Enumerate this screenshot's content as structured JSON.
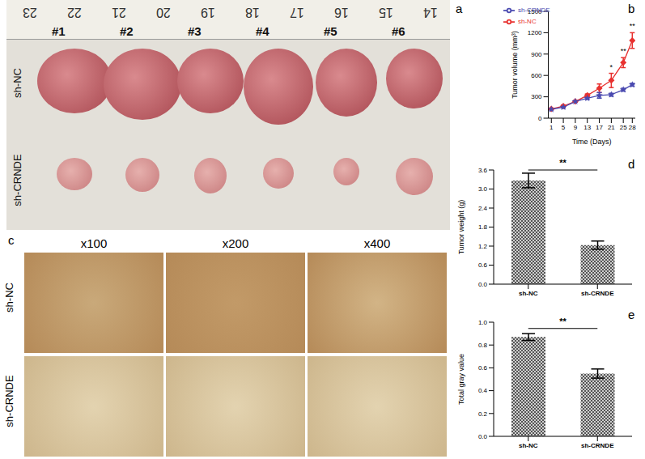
{
  "panels": {
    "a": {
      "label": "a",
      "ruler": [
        "23",
        "22",
        "21",
        "20",
        "19",
        "18",
        "17",
        "16",
        "15",
        "14"
      ],
      "samples": [
        "#1",
        "#2",
        "#3",
        "#4",
        "#5",
        "#6"
      ],
      "rows": [
        "sh-NC",
        "sh-CRNDE"
      ]
    },
    "c": {
      "label": "c",
      "columns": [
        "x100",
        "x200",
        "x400"
      ],
      "rows": [
        "sh-NC",
        "sh-CRNDE"
      ]
    }
  },
  "chart_data": [
    {
      "label": "b",
      "type": "line",
      "x": [
        1,
        5,
        9,
        13,
        17,
        21,
        25,
        28
      ],
      "xlim": [
        0,
        29
      ],
      "xticks": [
        1,
        5,
        9,
        13,
        17,
        21,
        25,
        28
      ],
      "ylim": [
        0,
        1500
      ],
      "yticks": [
        0,
        300,
        600,
        900,
        1200,
        1500
      ],
      "x_label": "Time (Days)",
      "y_label": "Tumor volume (mm³)",
      "legend": "upper left",
      "series": [
        {
          "name": "sh-NC",
          "color": "#e8312f",
          "marker": "diamond",
          "values": [
            130,
            170,
            235,
            320,
            420,
            530,
            780,
            1090
          ],
          "errors": [
            10,
            15,
            10,
            20,
            60,
            100,
            70,
            110
          ]
        },
        {
          "name": "sh-CRNDE",
          "color": "#4a4ab0",
          "marker": "star",
          "values": [
            125,
            155,
            235,
            280,
            320,
            330,
            400,
            470
          ],
          "errors": [
            10,
            10,
            10,
            15,
            40,
            20,
            20,
            20
          ]
        }
      ],
      "annotations": [
        {
          "x": 21,
          "text": "*"
        },
        {
          "x": 25,
          "text": "**"
        },
        {
          "x": 28,
          "text": "**"
        }
      ]
    },
    {
      "label": "d",
      "type": "bar",
      "categories": [
        "sh-NC",
        "sh-CRNDE"
      ],
      "values": [
        3.27,
        1.23
      ],
      "errors": [
        0.23,
        0.13
      ],
      "color": "#555555",
      "ylim": [
        0,
        3.6
      ],
      "yticks": [
        {
          "value": 0,
          "label": "0.0"
        },
        0.6,
        1.2,
        1.8,
        2.4,
        {
          "value": 3,
          "label": "3.0"
        },
        3.6
      ],
      "y_label": "Tumor weight (g)",
      "significance": "**"
    },
    {
      "label": "e",
      "type": "bar",
      "categories": [
        "sh-NC",
        "sh-CRNDE"
      ],
      "values": [
        0.87,
        0.55
      ],
      "errors": [
        0.03,
        0.04
      ],
      "color": "#555555",
      "ylim": [
        0,
        1
      ],
      "yticks": [
        {
          "value": 0,
          "label": "0.0"
        },
        0.2,
        0.4,
        0.6,
        0.8,
        {
          "value": 1,
          "label": "1.0"
        }
      ],
      "y_label": "Total gray value",
      "significance": "**"
    }
  ]
}
